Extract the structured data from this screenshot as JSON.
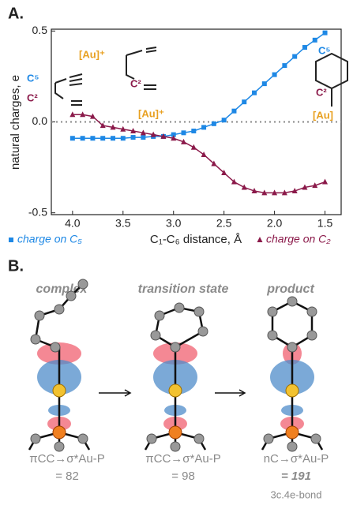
{
  "panel_labels": [
    "A.",
    "B."
  ],
  "chart_data": {
    "type": "line",
    "x_label": "C₁-C₆ distance, Å",
    "y_label": "natural charges, e",
    "x": [
      4.0,
      3.9,
      3.8,
      3.7,
      3.6,
      3.5,
      3.4,
      3.3,
      3.2,
      3.1,
      3.0,
      2.9,
      2.8,
      2.7,
      2.6,
      2.5,
      2.4,
      2.3,
      2.2,
      2.1,
      2.0,
      1.9,
      1.8,
      1.7,
      1.6,
      1.5
    ],
    "series": [
      {
        "name": "charge on C₅",
        "color": "#1e88e5",
        "marker": "square",
        "values": [
          -0.09,
          -0.09,
          -0.09,
          -0.09,
          -0.09,
          -0.09,
          -0.085,
          -0.085,
          -0.08,
          -0.08,
          -0.07,
          -0.06,
          -0.05,
          -0.03,
          -0.01,
          0.01,
          0.06,
          0.11,
          0.16,
          0.21,
          0.26,
          0.31,
          0.36,
          0.41,
          0.45,
          0.49
        ]
      },
      {
        "name": "charge on C₂",
        "color": "#8b1a4a",
        "marker": "triangle",
        "values": [
          0.04,
          0.04,
          0.03,
          -0.02,
          -0.03,
          -0.04,
          -0.05,
          -0.06,
          -0.07,
          -0.08,
          -0.09,
          -0.11,
          -0.14,
          -0.18,
          -0.23,
          -0.28,
          -0.33,
          -0.36,
          -0.38,
          -0.39,
          -0.39,
          -0.39,
          -0.38,
          -0.36,
          -0.35,
          -0.33
        ]
      }
    ],
    "xlim": [
      4.21,
      1.34
    ],
    "ylim": [
      -0.51,
      0.51
    ],
    "xticks": [
      {
        "value": 4,
        "label": "4.0"
      },
      3.5,
      {
        "value": 3,
        "label": "3.0"
      },
      2.5,
      {
        "value": 2,
        "label": "2.0"
      },
      1.5
    ],
    "yticks": [
      0.5,
      {
        "value": 0,
        "label": "0.0"
      },
      -0.5
    ],
    "zero_line": true,
    "annotations": [
      "C⁵",
      "C²",
      "[Au]⁺",
      "C²",
      "[Au]⁺",
      "C⁵",
      "C²",
      "[Au]"
    ]
  },
  "panel_b": {
    "headings": [
      "complex",
      "transition state",
      "product"
    ],
    "orbitals": [
      "πCC→σ*Au-P",
      "πCC→σ*Au-P",
      "nC→σ*Au-P"
    ],
    "energies": [
      "= 82",
      "= 98",
      "= 191"
    ],
    "note": "3c.4e-bond"
  }
}
